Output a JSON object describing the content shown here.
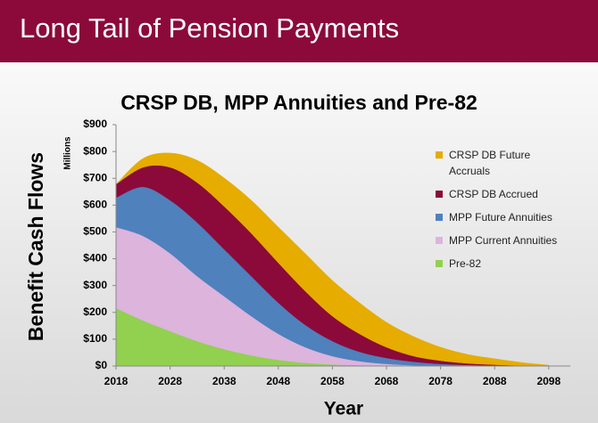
{
  "slide_title": "Long Tail of Pension Payments",
  "chart_data": {
    "type": "stacked_area",
    "title": "CRSP DB, MPP Annuities and Pre-82",
    "y_axis_label": "Benefit Cash Flows",
    "y_unit_label": "Millions",
    "x_axis_label": "Year",
    "x": [
      2018,
      2023,
      2028,
      2033,
      2038,
      2043,
      2048,
      2053,
      2058,
      2063,
      2068,
      2073,
      2078,
      2083,
      2088,
      2093,
      2098
    ],
    "xlim": [
      2018,
      2102
    ],
    "xticks": [
      2018,
      2028,
      2038,
      2048,
      2058,
      2068,
      2078,
      2088,
      2098
    ],
    "ylim": [
      0,
      900
    ],
    "yticks": [
      {
        "value": 0,
        "label": "$0"
      },
      {
        "value": 100,
        "label": "$100"
      },
      {
        "value": 200,
        "label": "$200"
      },
      {
        "value": 300,
        "label": "$300"
      },
      {
        "value": 400,
        "label": "$400"
      },
      {
        "value": 500,
        "label": "$500"
      },
      {
        "value": 600,
        "label": "$600"
      },
      {
        "value": 700,
        "label": "$700"
      },
      {
        "value": 800,
        "label": "$800"
      },
      {
        "value": 900,
        "label": "$900"
      }
    ],
    "series": [
      {
        "name": "Pre-82",
        "color": "#92d050",
        "values": [
          216,
          170,
          130,
          93,
          63,
          40,
          23,
          12,
          6,
          3,
          1,
          0,
          0,
          0,
          0,
          0,
          0
        ]
      },
      {
        "name": "MPP Current Annuities",
        "color": "#dcb4dc",
        "values": [
          302,
          315,
          290,
          242,
          197,
          146,
          97,
          58,
          31,
          15,
          7,
          3,
          1,
          0,
          0,
          0,
          0
        ]
      },
      {
        "name": "MPP Future Annuities",
        "color": "#4f81bd",
        "values": [
          110,
          183,
          198,
          200,
          175,
          149,
          116,
          83,
          56,
          35,
          22,
          13,
          7,
          4,
          2,
          1,
          0
        ]
      },
      {
        "name": "CRSP DB Accrued",
        "color": "#8b0a3a",
        "values": [
          50,
          73,
          123,
          149,
          160,
          160,
          149,
          126,
          93,
          67,
          40,
          21,
          12,
          6,
          3,
          1,
          1
        ]
      },
      {
        "name": "CRSP DB Future Accruals",
        "color": "#e6ac00",
        "values": [
          0,
          33,
          53,
          83,
          106,
          123,
          133,
          140,
          133,
          116,
          93,
          73,
          50,
          33,
          22,
          11,
          2
        ]
      }
    ],
    "legend_position": "right"
  }
}
